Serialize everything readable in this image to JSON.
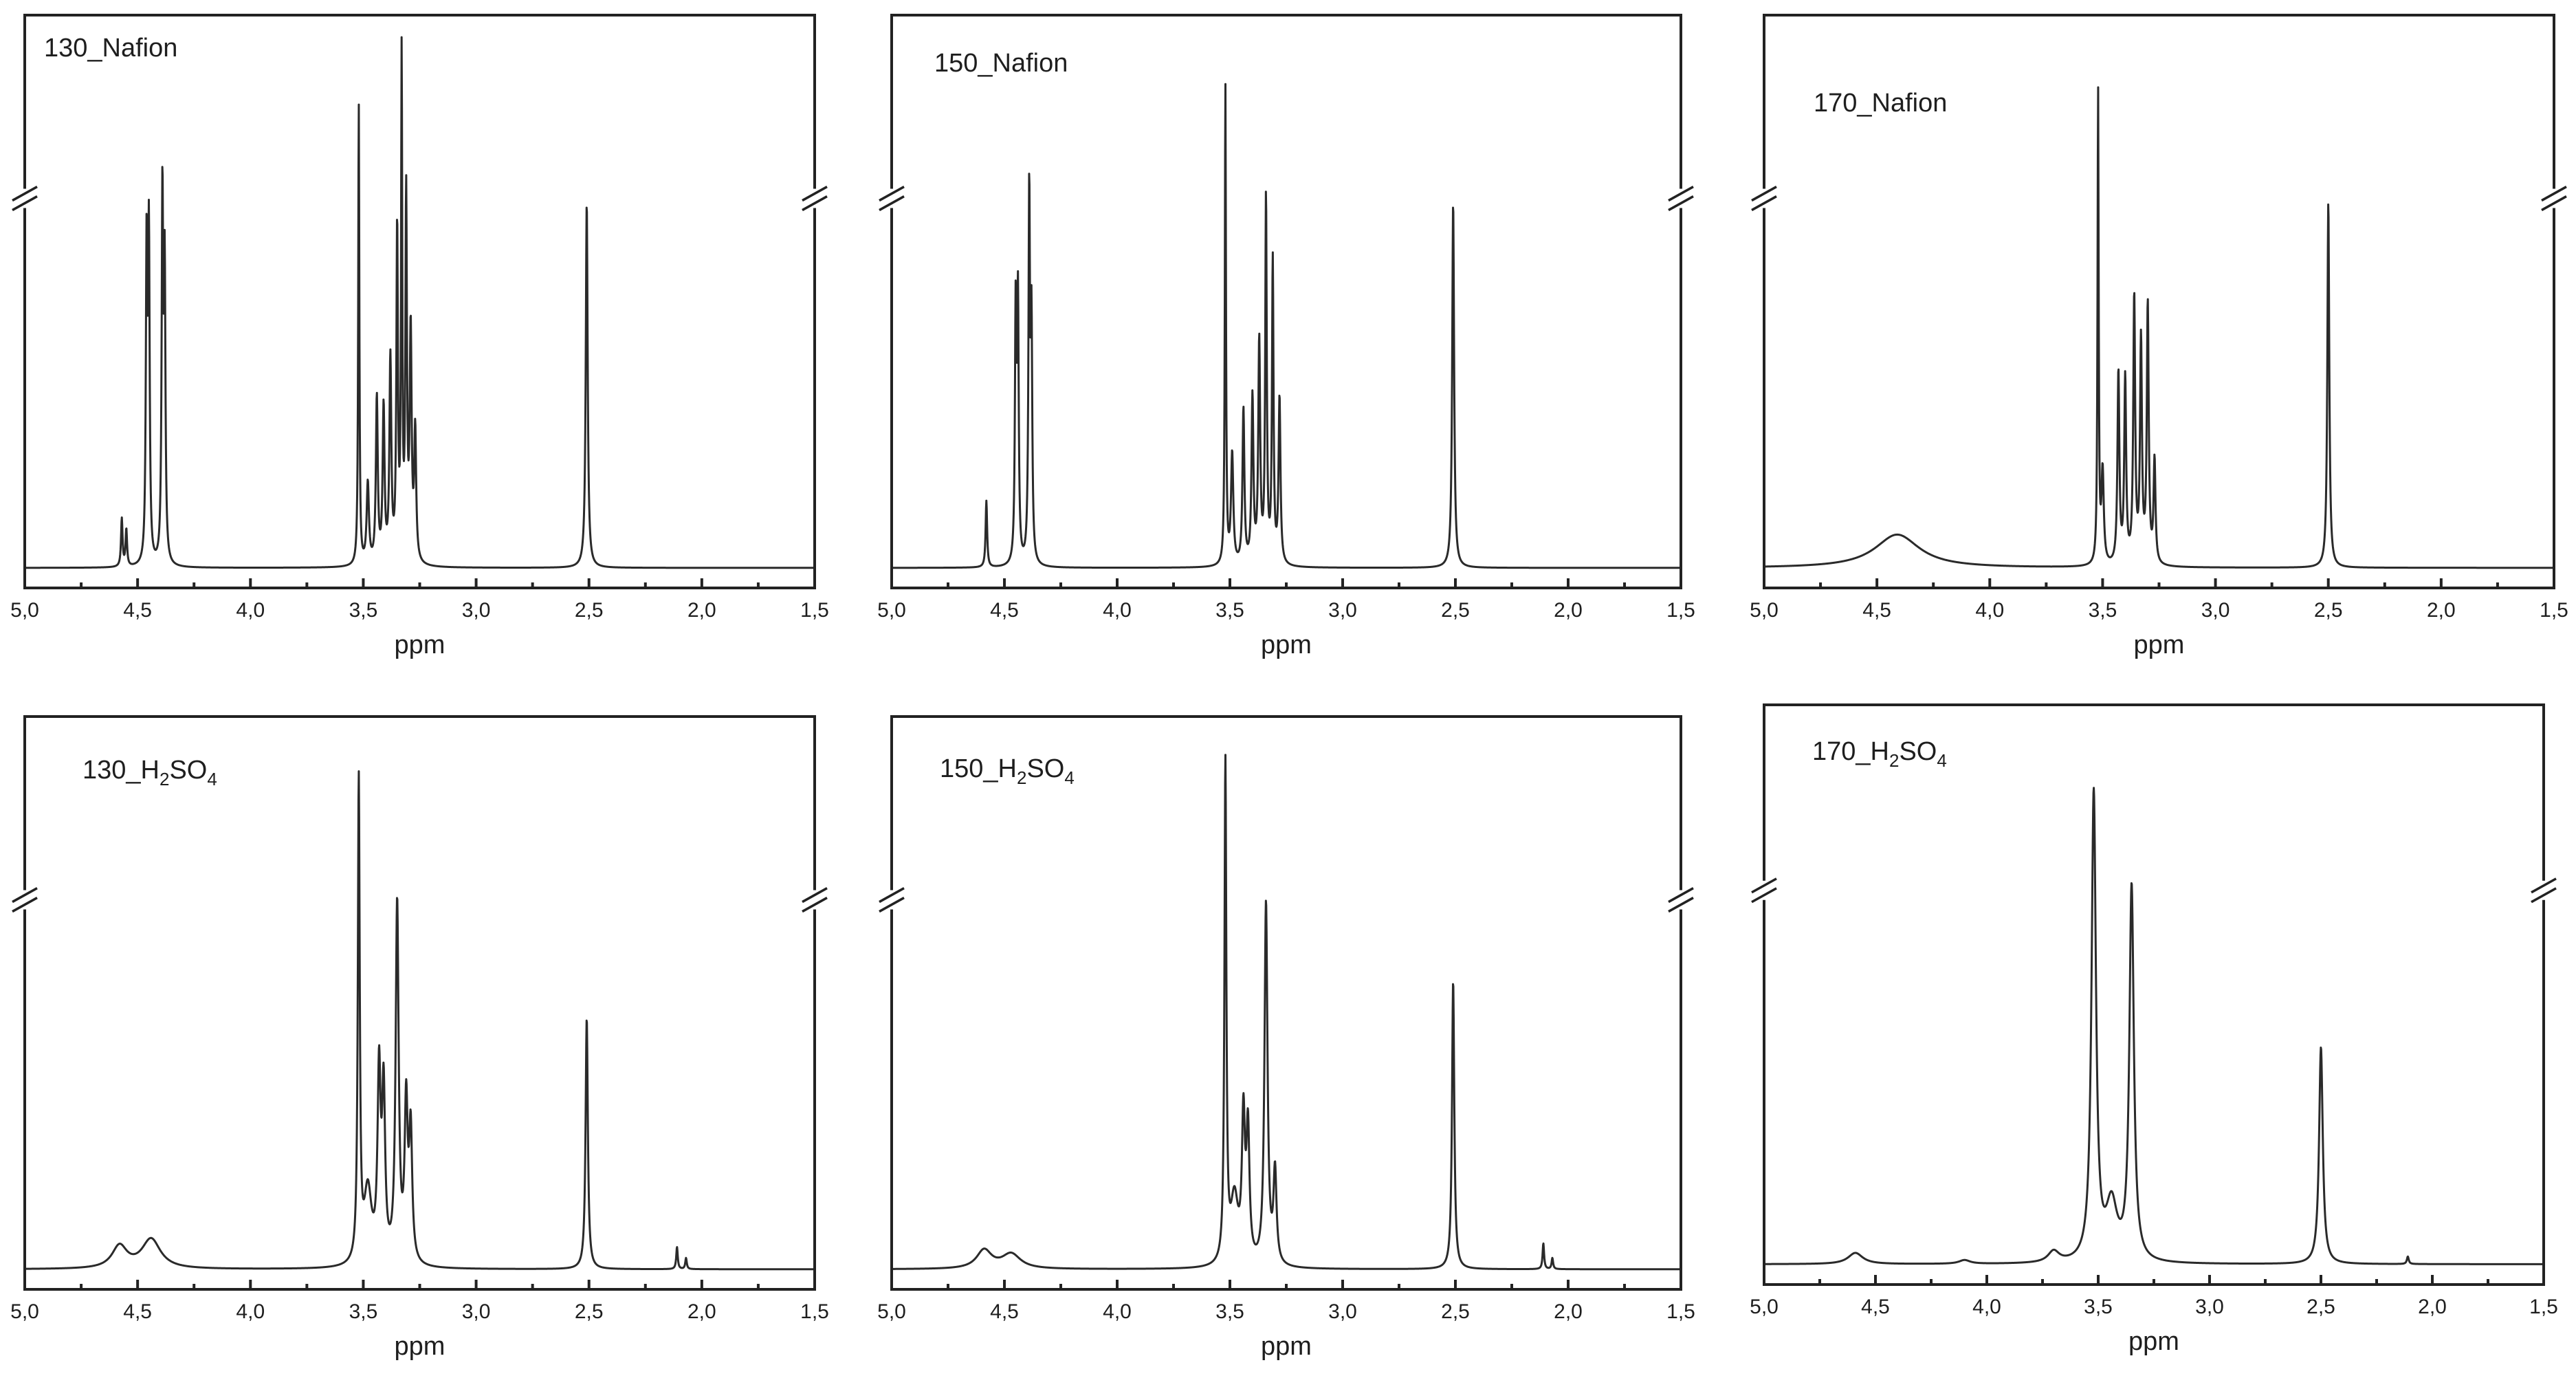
{
  "chart_data": [
    {
      "type": "line",
      "panel_label": {
        "main": "130_Nafion",
        "sub": "",
        "tail": ""
      },
      "xlabel": "ppm",
      "xlim": [
        5.0,
        1.5
      ],
      "x_ticks": [
        "5,0",
        "4,5",
        "4,0",
        "3,5",
        "3,0",
        "2,5",
        "2,0",
        "1,5"
      ],
      "y_axis_break": true,
      "baseline": 0.02,
      "peaks": [
        {
          "ppm": 4.57,
          "h": 0.13,
          "w": 0.004
        },
        {
          "ppm": 4.55,
          "h": 0.1,
          "w": 0.004
        },
        {
          "ppm": 4.46,
          "h": 0.85,
          "w": 0.004
        },
        {
          "ppm": 4.45,
          "h": 0.87,
          "w": 0.004
        },
        {
          "ppm": 4.39,
          "h": 0.99,
          "w": 0.004
        },
        {
          "ppm": 4.38,
          "h": 0.77,
          "w": 0.004
        },
        {
          "ppm": 3.52,
          "h": 1.25,
          "w": 0.003
        },
        {
          "ppm": 3.48,
          "h": 0.22,
          "w": 0.006
        },
        {
          "ppm": 3.44,
          "h": 0.45,
          "w": 0.005
        },
        {
          "ppm": 3.41,
          "h": 0.42,
          "w": 0.005
        },
        {
          "ppm": 3.38,
          "h": 0.55,
          "w": 0.005
        },
        {
          "ppm": 3.35,
          "h": 0.9,
          "w": 0.004
        },
        {
          "ppm": 3.33,
          "h": 1.35,
          "w": 0.003
        },
        {
          "ppm": 3.31,
          "h": 0.98,
          "w": 0.004
        },
        {
          "ppm": 3.29,
          "h": 0.62,
          "w": 0.005
        },
        {
          "ppm": 3.27,
          "h": 0.35,
          "w": 0.005
        },
        {
          "ppm": 2.51,
          "h": 0.99,
          "w": 0.005
        }
      ]
    },
    {
      "type": "line",
      "panel_label": {
        "main": "150_Nafion",
        "sub": "",
        "tail": ""
      },
      "xlabel": "ppm",
      "xlim": [
        5.0,
        1.5
      ],
      "x_ticks": [
        "5,0",
        "4,5",
        "4,0",
        "3,5",
        "3,0",
        "2,5",
        "2,0",
        "1,5"
      ],
      "y_axis_break": true,
      "baseline": 0.02,
      "peaks": [
        {
          "ppm": 4.58,
          "h": 0.18,
          "w": 0.004
        },
        {
          "ppm": 4.45,
          "h": 0.68,
          "w": 0.004
        },
        {
          "ppm": 4.44,
          "h": 0.7,
          "w": 0.004
        },
        {
          "ppm": 4.39,
          "h": 0.99,
          "w": 0.004
        },
        {
          "ppm": 4.38,
          "h": 0.62,
          "w": 0.004
        },
        {
          "ppm": 3.52,
          "h": 1.3,
          "w": 0.003
        },
        {
          "ppm": 3.49,
          "h": 0.3,
          "w": 0.006
        },
        {
          "ppm": 3.44,
          "h": 0.42,
          "w": 0.005
        },
        {
          "ppm": 3.4,
          "h": 0.45,
          "w": 0.005
        },
        {
          "ppm": 3.37,
          "h": 0.6,
          "w": 0.005
        },
        {
          "ppm": 3.34,
          "h": 0.99,
          "w": 0.004
        },
        {
          "ppm": 3.31,
          "h": 0.82,
          "w": 0.004
        },
        {
          "ppm": 3.28,
          "h": 0.45,
          "w": 0.005
        },
        {
          "ppm": 2.51,
          "h": 0.99,
          "w": 0.005
        }
      ]
    },
    {
      "type": "line",
      "panel_label": {
        "main": "170_Nafion",
        "sub": "",
        "tail": ""
      },
      "xlabel": "ppm",
      "xlim": [
        5.0,
        1.5
      ],
      "x_ticks": [
        "5,0",
        "4,5",
        "4,0",
        "3,5",
        "3,0",
        "2,5",
        "2,0",
        "1,5"
      ],
      "y_axis_break": true,
      "baseline": 0.02,
      "peaks": [
        {
          "ppm": 4.41,
          "h": 0.09,
          "w": 0.12
        },
        {
          "ppm": 3.52,
          "h": 1.28,
          "w": 0.003
        },
        {
          "ppm": 3.5,
          "h": 0.25,
          "w": 0.006
        },
        {
          "ppm": 3.43,
          "h": 0.52,
          "w": 0.005
        },
        {
          "ppm": 3.4,
          "h": 0.5,
          "w": 0.005
        },
        {
          "ppm": 3.36,
          "h": 0.72,
          "w": 0.005
        },
        {
          "ppm": 3.33,
          "h": 0.6,
          "w": 0.005
        },
        {
          "ppm": 3.3,
          "h": 0.7,
          "w": 0.005
        },
        {
          "ppm": 3.27,
          "h": 0.28,
          "w": 0.005
        },
        {
          "ppm": 2.5,
          "h": 0.99,
          "w": 0.005
        }
      ]
    },
    {
      "type": "line",
      "panel_label": {
        "main": "130_H",
        "sub": "2",
        "tail": "SO",
        "sub2": "4"
      },
      "xlabel": "ppm",
      "xlim": [
        5.0,
        1.5
      ],
      "x_ticks": [
        "5,0",
        "4,5",
        "4,0",
        "3,5",
        "3,0",
        "2,5",
        "2,0",
        "1,5"
      ],
      "y_axis_break": true,
      "baseline": 0.02,
      "peaks": [
        {
          "ppm": 4.58,
          "h": 0.06,
          "w": 0.04
        },
        {
          "ppm": 4.44,
          "h": 0.08,
          "w": 0.05
        },
        {
          "ppm": 3.52,
          "h": 1.3,
          "w": 0.005
        },
        {
          "ppm": 3.48,
          "h": 0.2,
          "w": 0.02
        },
        {
          "ppm": 3.43,
          "h": 0.5,
          "w": 0.008
        },
        {
          "ppm": 3.41,
          "h": 0.45,
          "w": 0.008
        },
        {
          "ppm": 3.35,
          "h": 0.97,
          "w": 0.008
        },
        {
          "ppm": 3.31,
          "h": 0.42,
          "w": 0.008
        },
        {
          "ppm": 3.29,
          "h": 0.35,
          "w": 0.008
        },
        {
          "ppm": 2.51,
          "h": 0.68,
          "w": 0.006
        },
        {
          "ppm": 2.11,
          "h": 0.06,
          "w": 0.004
        },
        {
          "ppm": 2.07,
          "h": 0.03,
          "w": 0.004
        }
      ]
    },
    {
      "type": "line",
      "panel_label": {
        "main": "150_H",
        "sub": "2",
        "tail": "SO",
        "sub2": "4"
      },
      "xlabel": "ppm",
      "xlim": [
        5.0,
        1.5
      ],
      "x_ticks": [
        "5,0",
        "4,5",
        "4,0",
        "3,5",
        "3,0",
        "2,5",
        "2,0",
        "1,5"
      ],
      "y_axis_break": true,
      "baseline": 0.02,
      "peaks": [
        {
          "ppm": 4.59,
          "h": 0.05,
          "w": 0.04
        },
        {
          "ppm": 4.47,
          "h": 0.04,
          "w": 0.05
        },
        {
          "ppm": 3.52,
          "h": 1.35,
          "w": 0.005
        },
        {
          "ppm": 3.48,
          "h": 0.18,
          "w": 0.02
        },
        {
          "ppm": 3.44,
          "h": 0.38,
          "w": 0.008
        },
        {
          "ppm": 3.42,
          "h": 0.35,
          "w": 0.008
        },
        {
          "ppm": 3.34,
          "h": 0.98,
          "w": 0.008
        },
        {
          "ppm": 3.3,
          "h": 0.25,
          "w": 0.008
        },
        {
          "ppm": 2.51,
          "h": 0.78,
          "w": 0.006
        },
        {
          "ppm": 2.11,
          "h": 0.07,
          "w": 0.004
        },
        {
          "ppm": 2.07,
          "h": 0.03,
          "w": 0.004
        }
      ]
    },
    {
      "type": "line",
      "panel_label": {
        "main": "170_H",
        "sub": "2",
        "tail": "SO",
        "sub2": "4"
      },
      "xlabel": "ppm",
      "xlim": [
        5.0,
        1.5
      ],
      "x_ticks": [
        "5,0",
        "4,5",
        "4,0",
        "3,5",
        "3,0",
        "2,5",
        "2,0",
        "1,5"
      ],
      "y_axis_break": true,
      "baseline": 0.02,
      "peaks": [
        {
          "ppm": 4.59,
          "h": 0.03,
          "w": 0.04
        },
        {
          "ppm": 4.1,
          "h": 0.01,
          "w": 0.03
        },
        {
          "ppm": 3.7,
          "h": 0.03,
          "w": 0.03
        },
        {
          "ppm": 3.52,
          "h": 1.25,
          "w": 0.012
        },
        {
          "ppm": 3.44,
          "h": 0.15,
          "w": 0.03
        },
        {
          "ppm": 3.35,
          "h": 1.0,
          "w": 0.012
        },
        {
          "ppm": 2.5,
          "h": 0.58,
          "w": 0.01
        },
        {
          "ppm": 2.11,
          "h": 0.02,
          "w": 0.005
        }
      ]
    }
  ]
}
